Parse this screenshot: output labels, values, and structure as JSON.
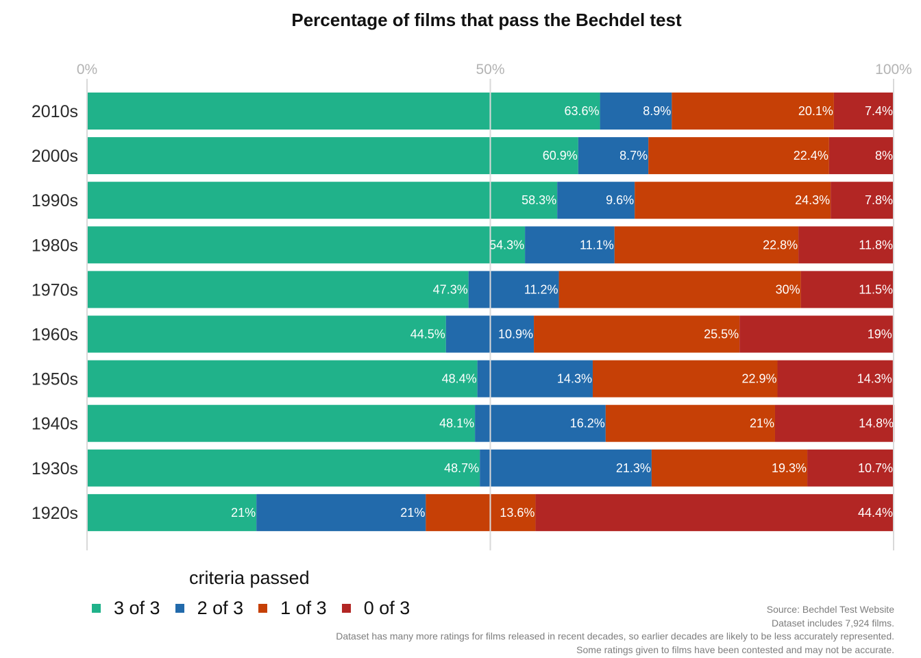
{
  "chart_data": {
    "type": "bar",
    "orientation": "horizontal",
    "stacked": true,
    "title": "Percentage of films that pass the Bechdel test",
    "xlabel": "",
    "ylabel": "",
    "xlim": [
      0,
      100
    ],
    "x_ticks": [
      "0%",
      "50%",
      "100%"
    ],
    "grid": true,
    "categories": [
      "2010s",
      "2000s",
      "1990s",
      "1980s",
      "1970s",
      "1960s",
      "1950s",
      "1940s",
      "1930s",
      "1920s"
    ],
    "series": [
      {
        "name": "3 of 3",
        "color": "#20b28a",
        "values": [
          63.6,
          60.9,
          58.3,
          54.3,
          47.3,
          44.5,
          48.4,
          48.1,
          48.7,
          21
        ],
        "labels": [
          "63.6%",
          "60.9%",
          "58.3%",
          "54.3%",
          "47.3%",
          "44.5%",
          "48.4%",
          "48.1%",
          "48.7%",
          "21%"
        ]
      },
      {
        "name": "2 of 3",
        "color": "#226aab",
        "values": [
          8.9,
          8.7,
          9.6,
          11.1,
          11.2,
          10.9,
          14.3,
          16.2,
          21.3,
          21
        ],
        "labels": [
          "8.9%",
          "8.7%",
          "9.6%",
          "11.1%",
          "11.2%",
          "10.9%",
          "14.3%",
          "16.2%",
          "21.3%",
          "21%"
        ]
      },
      {
        "name": "1 of 3",
        "color": "#c64006",
        "values": [
          20.1,
          22.4,
          24.3,
          22.8,
          30,
          25.5,
          22.9,
          21,
          19.3,
          13.6
        ],
        "labels": [
          "20.1%",
          "22.4%",
          "24.3%",
          "22.8%",
          "30%",
          "25.5%",
          "22.9%",
          "21%",
          "19.3%",
          "13.6%"
        ]
      },
      {
        "name": "0 of 3",
        "color": "#b22624",
        "values": [
          7.4,
          8,
          7.8,
          11.8,
          11.5,
          19,
          14.3,
          14.8,
          10.7,
          44.4
        ],
        "labels": [
          "7.4%",
          "8%",
          "7.8%",
          "11.8%",
          "11.5%",
          "19%",
          "14.3%",
          "14.8%",
          "10.7%",
          "44.4%"
        ]
      }
    ],
    "legend": {
      "title": "criteria passed",
      "placement": "bottom-left"
    },
    "caption": [
      "Source: Bechdel Test Website",
      "Dataset includes 7,924 films.",
      "Dataset has many more ratings for films released in recent decades, so earlier decades are likely to be less accurately represented.",
      "Some ratings given to films have been contested and may not be accurate."
    ]
  }
}
